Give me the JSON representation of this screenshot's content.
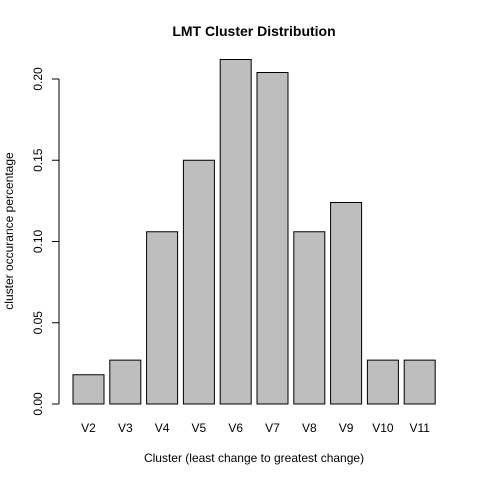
{
  "chart_data": {
    "type": "bar",
    "title": "LMT Cluster Distribution",
    "xlabel": "Cluster (least change to greatest change)",
    "ylabel": "cluster occurance percentage",
    "categories": [
      "V2",
      "V3",
      "V4",
      "V5",
      "V6",
      "V7",
      "V8",
      "V9",
      "V10",
      "V11"
    ],
    "values": [
      0.018,
      0.027,
      0.106,
      0.15,
      0.212,
      0.204,
      0.106,
      0.124,
      0.027,
      0.027
    ],
    "ylim": [
      0,
      0.21
    ],
    "yticks": [
      0.0,
      0.05,
      0.1,
      0.15,
      0.2
    ],
    "ytick_labels": [
      "0.00",
      "0.05",
      "0.10",
      "0.15",
      "0.20"
    ],
    "grid": false,
    "bar_fill": "#bebebe",
    "bar_stroke": "#000000"
  }
}
